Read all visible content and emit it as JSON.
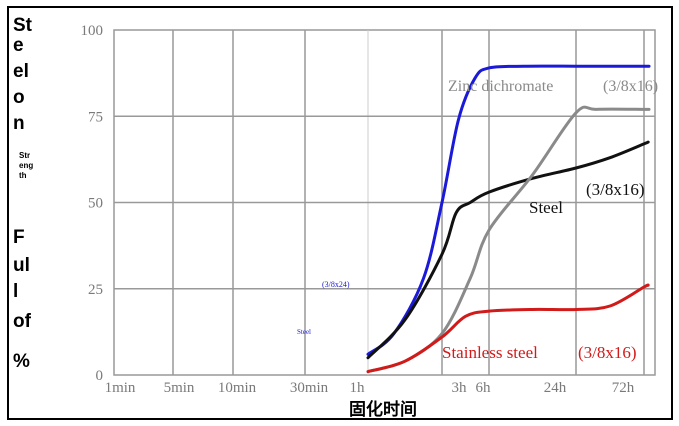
{
  "chart_data": {
    "type": "line",
    "ylabel_fragments": [
      "St",
      "e",
      "el",
      "o",
      "n",
      "Str",
      "eng",
      "th",
      "F",
      "ul",
      "l",
      "of",
      "%"
    ],
    "xlabel": "固化时间",
    "x_ticks": [
      "1min",
      "5min",
      "10min",
      "30min",
      "1h",
      "3h",
      "6h",
      "24h",
      "72h"
    ],
    "y_ticks": [
      "0",
      "25",
      "50",
      "75",
      "100"
    ],
    "ylim": [
      0,
      100
    ],
    "grid": true,
    "series": [
      {
        "name": "Zinc dichromate",
        "size": "(3/8x16)",
        "color": "#1a1ad8",
        "points": [
          [
            4,
            6
          ],
          [
            4.35,
            12
          ],
          [
            4.75,
            28
          ],
          [
            5,
            50
          ],
          [
            5.35,
            74
          ],
          [
            5.7,
            86
          ],
          [
            6,
            89
          ],
          [
            6.4,
            89.5
          ],
          [
            7,
            89.5
          ],
          [
            7.3,
            89.5
          ],
          [
            8,
            89.5
          ],
          [
            8.06,
            89.5
          ]
        ]
      },
      {
        "name": "Steel",
        "size": "(3/8x16)",
        "color": "#111111",
        "points": [
          [
            4,
            5
          ],
          [
            4.5,
            16
          ],
          [
            5,
            35
          ],
          [
            5.3,
            47
          ],
          [
            5.6,
            50
          ],
          [
            6,
            53
          ],
          [
            6.5,
            57
          ],
          [
            7,
            60
          ],
          [
            7.5,
            63
          ],
          [
            8,
            67
          ],
          [
            8.06,
            67.5
          ]
        ]
      },
      {
        "name": "",
        "size": "",
        "color": "#8a8a8a",
        "points": [
          [
            4,
            1
          ],
          [
            4.5,
            4
          ],
          [
            5,
            12
          ],
          [
            5.6,
            28
          ],
          [
            6,
            42
          ],
          [
            6.5,
            58
          ],
          [
            7,
            76
          ],
          [
            7.3,
            77
          ],
          [
            8,
            77
          ],
          [
            8.06,
            77
          ]
        ]
      },
      {
        "name": "Stainless steel",
        "size": "(3/8x16)",
        "color": "#d11a1a",
        "points": [
          [
            4,
            1
          ],
          [
            4.5,
            4
          ],
          [
            5,
            11
          ],
          [
            5.5,
            17
          ],
          [
            6,
            18.5
          ],
          [
            6.5,
            19
          ],
          [
            7,
            19
          ],
          [
            7.5,
            20
          ],
          [
            8,
            25.5
          ],
          [
            8.06,
            26
          ]
        ]
      }
    ],
    "small_labels": [
      {
        "text": "Steel",
        "color": "#1a1ad8"
      },
      {
        "text": "(3/8x24)",
        "color": "#1a1ad8"
      }
    ]
  }
}
